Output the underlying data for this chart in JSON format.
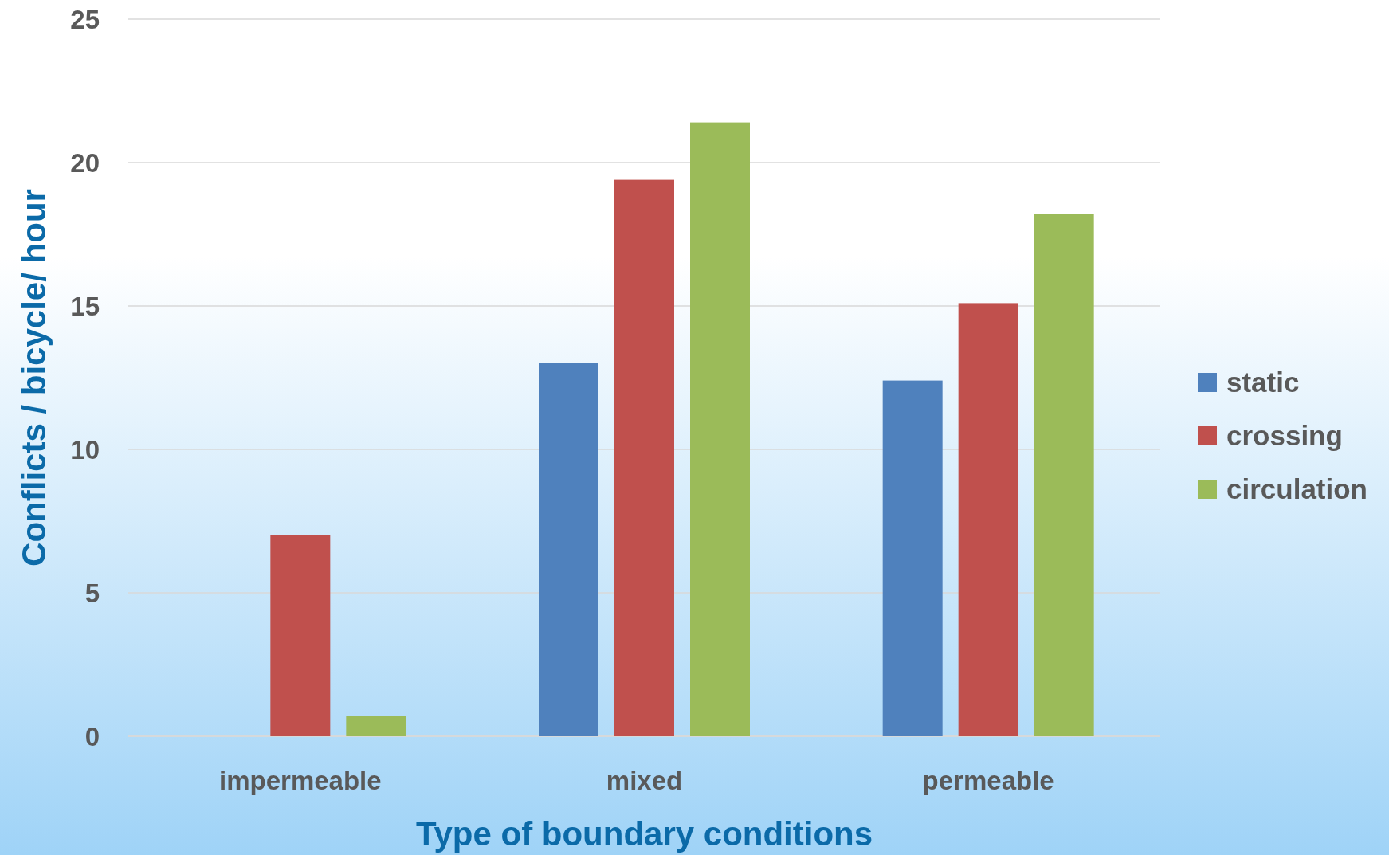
{
  "chart_data": {
    "type": "bar",
    "xlabel": "Type of boundary conditions",
    "ylabel": "Conflicts / bicycle/ hour",
    "categories": [
      "impermeable",
      "mixed",
      "permeable"
    ],
    "series": [
      {
        "name": "static",
        "color": "#4f81bd",
        "values": [
          0,
          13.0,
          12.4
        ]
      },
      {
        "name": "crossing",
        "color": "#c0504d",
        "values": [
          7.0,
          19.4,
          15.1
        ]
      },
      {
        "name": "circulation",
        "color": "#9bbb59",
        "values": [
          0.7,
          21.4,
          18.2
        ]
      }
    ],
    "ylim": [
      0,
      25
    ],
    "yticks": [
      0,
      5,
      10,
      15,
      20,
      25
    ],
    "grid": "y",
    "legend": "right"
  }
}
